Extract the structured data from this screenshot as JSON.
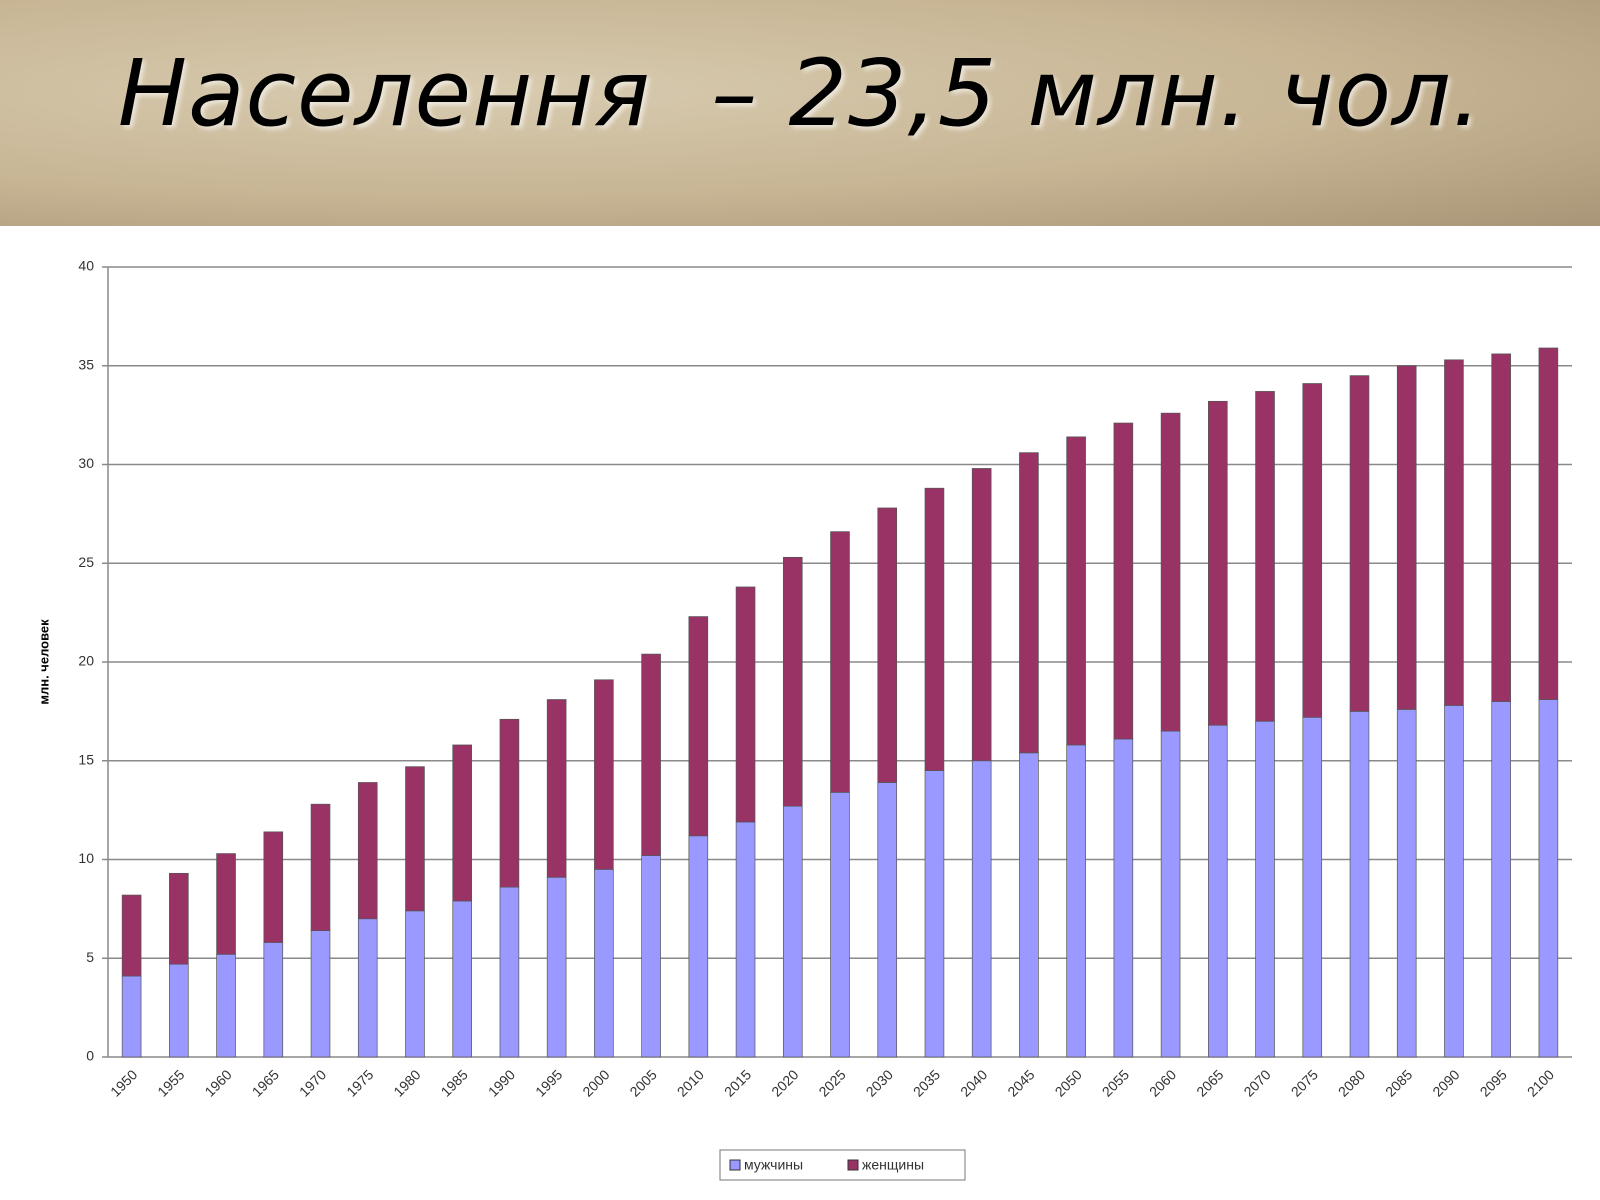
{
  "chart_data": {
    "type": "bar",
    "stacked": true,
    "title": "Населення  – 23,5 млн. чол.",
    "y_label": "млн. человек",
    "categories": [
      "1950",
      "1955",
      "1960",
      "1965",
      "1970",
      "1975",
      "1980",
      "1985",
      "1990",
      "1995",
      "2000",
      "2005",
      "2010",
      "2015",
      "2020",
      "2025",
      "2030",
      "2035",
      "2040",
      "2045",
      "2050",
      "2055",
      "2060",
      "2065",
      "2070",
      "2075",
      "2080",
      "2085",
      "2090",
      "2095",
      "2100"
    ],
    "series": [
      {
        "name": "мужчины",
        "color": "#9999ff",
        "values": [
          4.1,
          4.7,
          5.2,
          5.8,
          6.4,
          7.0,
          7.4,
          7.9,
          8.6,
          9.1,
          9.5,
          10.2,
          11.2,
          11.9,
          12.7,
          13.4,
          13.9,
          14.5,
          15.0,
          15.4,
          15.8,
          16.1,
          16.5,
          16.8,
          17.0,
          17.2,
          17.5,
          17.6,
          17.8,
          18.0,
          18.1
        ]
      },
      {
        "name": "женщины",
        "color": "#993366",
        "values": [
          4.1,
          4.6,
          5.1,
          5.6,
          6.4,
          6.9,
          7.3,
          7.9,
          8.5,
          9.0,
          9.6,
          10.2,
          11.1,
          11.9,
          12.6,
          13.2,
          13.9,
          14.3,
          14.8,
          15.2,
          15.6,
          16.0,
          16.1,
          16.4,
          16.7,
          16.9,
          17.0,
          17.4,
          17.5,
          17.6,
          17.8
        ]
      }
    ],
    "ylim": [
      0,
      40
    ],
    "yticks": [
      0,
      5,
      10,
      15,
      20,
      25,
      30,
      35,
      40
    ],
    "grid": true,
    "legend": "bottom"
  }
}
